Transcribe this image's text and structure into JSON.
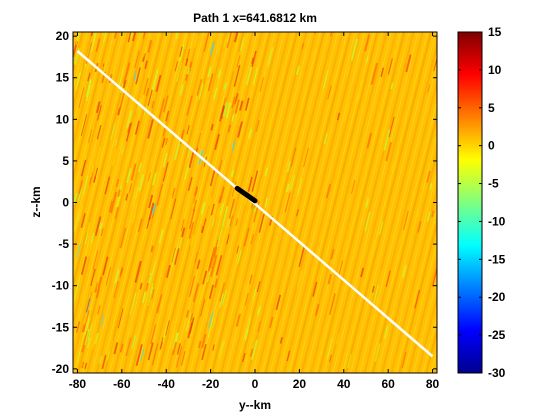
{
  "chart_data": {
    "type": "heatmap",
    "title": "Path 1 x=641.6812 km",
    "xlabel": "y--km",
    "ylabel": "z--km",
    "xlim": [
      -82,
      82
    ],
    "ylim": [
      -20.5,
      20.5
    ],
    "xticks": [
      "-80",
      "-60",
      "-40",
      "-20",
      "0",
      "20",
      "40",
      "60",
      "80"
    ],
    "yticks": [
      "20",
      "15",
      "10",
      "5",
      "0",
      "-5",
      "-10",
      "-15",
      "-20"
    ],
    "colorbar": {
      "colormap": "jet",
      "clim": [
        -30,
        15
      ],
      "ticks": [
        "15",
        "10",
        "5",
        "0",
        "-5",
        "-10",
        "-15",
        "-20",
        "-25",
        "-30"
      ]
    },
    "background_value": 0,
    "path_line": {
      "x": [
        -80,
        80
      ],
      "y": [
        18.2,
        -18.5
      ],
      "color": "#ffffff"
    },
    "source_segment": {
      "x": [
        -8,
        0
      ],
      "y": [
        1.7,
        0.2
      ],
      "color": "#000000"
    }
  }
}
